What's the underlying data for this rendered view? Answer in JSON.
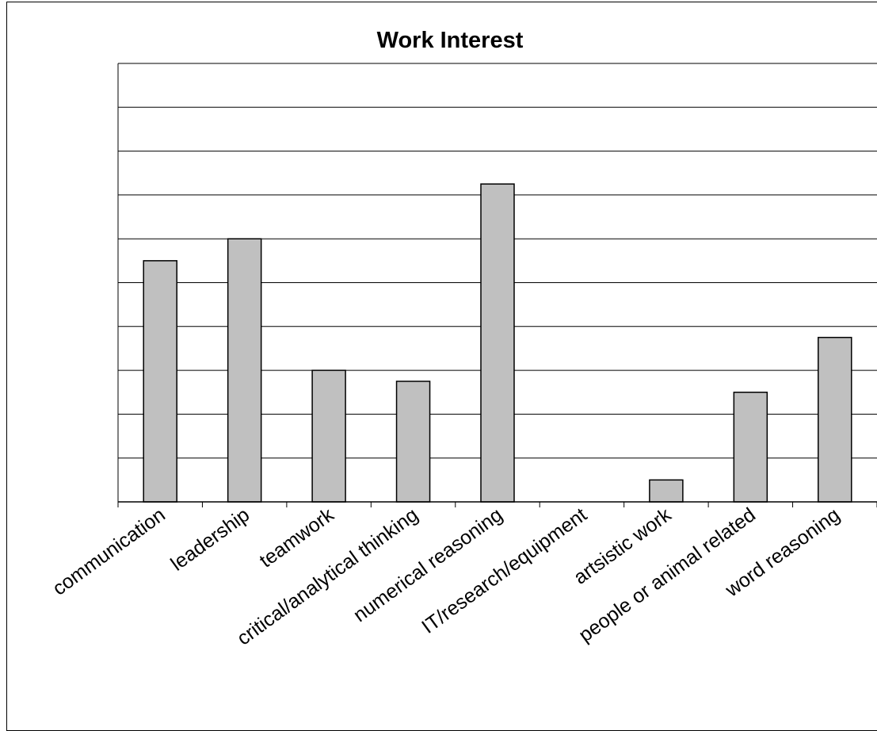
{
  "chart_data": {
    "type": "bar",
    "title": "Work Interest",
    "xlabel": "",
    "ylabel": "",
    "categories": [
      "communication",
      "leadership",
      "teamwork",
      "critical/analytical thinking",
      "numerical reasoning",
      "IT/research/equipment",
      "artsistic work",
      "people or animal related",
      "word reasoning"
    ],
    "values": [
      5.5,
      6.0,
      3.0,
      2.75,
      7.25,
      0,
      0.5,
      2.5,
      3.75
    ],
    "ylim": [
      0,
      10
    ],
    "grid": true,
    "legend": "none",
    "colors": {
      "bar_fill": "#c0c0c0",
      "bar_stroke": "#000000",
      "grid": "#000000"
    }
  }
}
